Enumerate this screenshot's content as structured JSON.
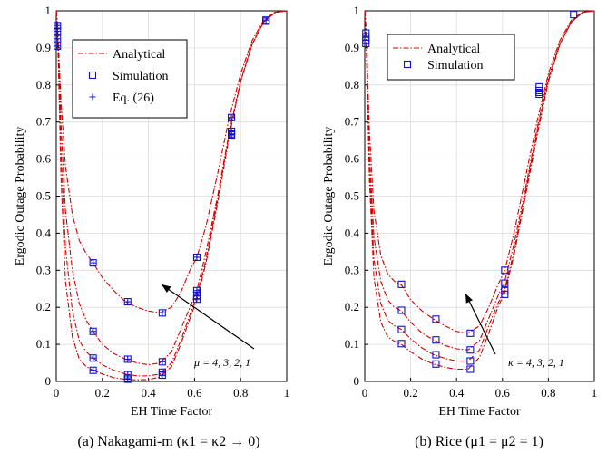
{
  "chart_data": [
    {
      "type": "line",
      "caption": "(a) Nakagami-m (κ1 = κ2 → 0)",
      "xlabel": "EH Time Factor",
      "ylabel": "Ergodic Outage Probability",
      "xlim": [
        0,
        1
      ],
      "ylim": [
        0,
        1
      ],
      "xticks": [
        "0",
        "0.2",
        "0.4",
        "0.6",
        "0.8",
        "1"
      ],
      "yticks": [
        "0",
        "0.1",
        "0.2",
        "0.3",
        "0.4",
        "0.5",
        "0.6",
        "0.7",
        "0.8",
        "0.9",
        "1"
      ],
      "grid": true,
      "legend": {
        "placement": "top-left",
        "entries": [
          {
            "label": "Analytical",
            "style": "dash-dot",
            "color": "#d00000"
          },
          {
            "label": "Simulation",
            "style": "square",
            "color": "#1010d0"
          },
          {
            "label": "Eq. (26)",
            "style": "plus",
            "color": "#1010d0"
          }
        ]
      },
      "annotation": "μ = 4, 3, 2, 1",
      "series": [
        {
          "x": [
            0,
            0.0015,
            0.005,
            0.01,
            0.02,
            0.04,
            0.07,
            0.1,
            0.13,
            0.16,
            0.2,
            0.25,
            0.3,
            0.35,
            0.4,
            0.45,
            0.5,
            0.54,
            0.58,
            0.61,
            0.65,
            0.7,
            0.75,
            0.8,
            0.85,
            0.9,
            0.95,
            1.0
          ],
          "y": [
            1.0,
            0.99,
            0.97,
            0.9,
            0.76,
            0.58,
            0.45,
            0.38,
            0.345,
            0.32,
            0.28,
            0.245,
            0.215,
            0.2,
            0.19,
            0.185,
            0.2,
            0.24,
            0.3,
            0.335,
            0.42,
            0.56,
            0.71,
            0.83,
            0.92,
            0.975,
            0.997,
            1.0
          ]
        },
        {
          "x": [
            0,
            0.0015,
            0.005,
            0.01,
            0.02,
            0.04,
            0.07,
            0.1,
            0.13,
            0.16,
            0.2,
            0.25,
            0.3,
            0.35,
            0.4,
            0.45,
            0.5,
            0.54,
            0.58,
            0.61,
            0.65,
            0.7,
            0.75,
            0.8,
            0.85,
            0.9,
            0.95,
            1.0
          ],
          "y": [
            1.0,
            0.99,
            0.96,
            0.88,
            0.7,
            0.46,
            0.3,
            0.21,
            0.165,
            0.135,
            0.1,
            0.075,
            0.06,
            0.05,
            0.045,
            0.05,
            0.08,
            0.14,
            0.2,
            0.245,
            0.35,
            0.5,
            0.67,
            0.81,
            0.91,
            0.97,
            0.996,
            1.0
          ]
        },
        {
          "x": [
            0,
            0.0015,
            0.005,
            0.01,
            0.02,
            0.04,
            0.07,
            0.1,
            0.13,
            0.16,
            0.2,
            0.25,
            0.3,
            0.35,
            0.4,
            0.45,
            0.5,
            0.54,
            0.58,
            0.61,
            0.65,
            0.7,
            0.75,
            0.8,
            0.85,
            0.9,
            0.95,
            1.0
          ],
          "y": [
            1.0,
            0.99,
            0.95,
            0.86,
            0.63,
            0.36,
            0.19,
            0.11,
            0.08,
            0.063,
            0.045,
            0.03,
            0.02,
            0.015,
            0.015,
            0.02,
            0.05,
            0.11,
            0.18,
            0.23,
            0.33,
            0.49,
            0.67,
            0.81,
            0.91,
            0.97,
            0.996,
            1.0
          ]
        },
        {
          "x": [
            0,
            0.0015,
            0.005,
            0.01,
            0.02,
            0.04,
            0.07,
            0.1,
            0.13,
            0.16,
            0.2,
            0.25,
            0.3,
            0.35,
            0.4,
            0.45,
            0.5,
            0.54,
            0.58,
            0.61,
            0.65,
            0.7,
            0.75,
            0.8,
            0.85,
            0.9,
            0.95,
            1.0
          ],
          "y": [
            1.0,
            0.99,
            0.95,
            0.84,
            0.56,
            0.27,
            0.12,
            0.06,
            0.04,
            0.03,
            0.02,
            0.01,
            0.006,
            0.004,
            0.005,
            0.012,
            0.04,
            0.1,
            0.17,
            0.22,
            0.32,
            0.48,
            0.66,
            0.81,
            0.91,
            0.97,
            0.996,
            1.0
          ]
        }
      ],
      "simulation_points": [
        {
          "x": 0.005,
          "y": 0.96
        },
        {
          "x": 0.005,
          "y": 0.945
        },
        {
          "x": 0.005,
          "y": 0.925
        },
        {
          "x": 0.005,
          "y": 0.905
        },
        {
          "x": 0.16,
          "y": 0.32
        },
        {
          "x": 0.16,
          "y": 0.135
        },
        {
          "x": 0.16,
          "y": 0.063
        },
        {
          "x": 0.16,
          "y": 0.03
        },
        {
          "x": 0.31,
          "y": 0.215
        },
        {
          "x": 0.31,
          "y": 0.06
        },
        {
          "x": 0.31,
          "y": 0.018
        },
        {
          "x": 0.31,
          "y": 0.006
        },
        {
          "x": 0.46,
          "y": 0.185
        },
        {
          "x": 0.46,
          "y": 0.053
        },
        {
          "x": 0.46,
          "y": 0.025
        },
        {
          "x": 0.46,
          "y": 0.017
        },
        {
          "x": 0.61,
          "y": 0.335
        },
        {
          "x": 0.61,
          "y": 0.245
        },
        {
          "x": 0.61,
          "y": 0.232
        },
        {
          "x": 0.61,
          "y": 0.222
        },
        {
          "x": 0.76,
          "y": 0.712
        },
        {
          "x": 0.76,
          "y": 0.675
        },
        {
          "x": 0.76,
          "y": 0.668
        },
        {
          "x": 0.76,
          "y": 0.665
        },
        {
          "x": 0.91,
          "y": 0.975
        },
        {
          "x": 0.91,
          "y": 0.972
        }
      ],
      "eq26_points": [
        {
          "x": 0.005,
          "y": 0.96
        },
        {
          "x": 0.005,
          "y": 0.945
        },
        {
          "x": 0.005,
          "y": 0.925
        },
        {
          "x": 0.005,
          "y": 0.905
        },
        {
          "x": 0.16,
          "y": 0.32
        },
        {
          "x": 0.16,
          "y": 0.135
        },
        {
          "x": 0.16,
          "y": 0.063
        },
        {
          "x": 0.16,
          "y": 0.03
        },
        {
          "x": 0.31,
          "y": 0.215
        },
        {
          "x": 0.31,
          "y": 0.06
        },
        {
          "x": 0.31,
          "y": 0.018
        },
        {
          "x": 0.31,
          "y": 0.006
        },
        {
          "x": 0.46,
          "y": 0.185
        },
        {
          "x": 0.46,
          "y": 0.053
        },
        {
          "x": 0.46,
          "y": 0.025
        },
        {
          "x": 0.46,
          "y": 0.017
        },
        {
          "x": 0.61,
          "y": 0.335
        },
        {
          "x": 0.61,
          "y": 0.245
        },
        {
          "x": 0.61,
          "y": 0.232
        },
        {
          "x": 0.61,
          "y": 0.222
        },
        {
          "x": 0.76,
          "y": 0.712
        },
        {
          "x": 0.76,
          "y": 0.675
        },
        {
          "x": 0.76,
          "y": 0.668
        },
        {
          "x": 0.76,
          "y": 0.665
        },
        {
          "x": 0.91,
          "y": 0.975
        }
      ]
    },
    {
      "type": "line",
      "caption": "(b) Rice (μ1 = μ2 = 1)",
      "xlabel": "EH Time Factor",
      "ylabel": "Ergodic Outage Probability",
      "xlim": [
        0,
        1
      ],
      "ylim": [
        0,
        1
      ],
      "xticks": [
        "0",
        "0.2",
        "0.4",
        "0.6",
        "0.8",
        "1"
      ],
      "yticks": [
        "0",
        "0.1",
        "0.2",
        "0.3",
        "0.4",
        "0.5",
        "0.6",
        "0.7",
        "0.8",
        "0.9",
        "1"
      ],
      "grid": true,
      "legend": {
        "placement": "top-left",
        "entries": [
          {
            "label": "Analytical",
            "style": "dash-dot",
            "color": "#d00000"
          },
          {
            "label": "Simulation",
            "style": "square",
            "color": "#1010d0"
          }
        ]
      },
      "annotation": "κ = 4, 3, 2, 1",
      "series": [
        {
          "x": [
            0,
            0.0015,
            0.005,
            0.01,
            0.02,
            0.04,
            0.07,
            0.1,
            0.13,
            0.16,
            0.2,
            0.25,
            0.3,
            0.35,
            0.4,
            0.45,
            0.5,
            0.54,
            0.58,
            0.61,
            0.65,
            0.7,
            0.75,
            0.8,
            0.85,
            0.9,
            0.95,
            1.0
          ],
          "y": [
            1.0,
            0.99,
            0.96,
            0.87,
            0.68,
            0.46,
            0.34,
            0.29,
            0.27,
            0.26,
            0.22,
            0.19,
            0.168,
            0.15,
            0.135,
            0.13,
            0.15,
            0.2,
            0.26,
            0.3,
            0.4,
            0.55,
            0.7,
            0.83,
            0.92,
            0.975,
            0.997,
            1.0
          ]
        },
        {
          "x": [
            0,
            0.0015,
            0.005,
            0.01,
            0.02,
            0.04,
            0.07,
            0.1,
            0.13,
            0.16,
            0.2,
            0.25,
            0.3,
            0.35,
            0.4,
            0.45,
            0.5,
            0.54,
            0.58,
            0.61,
            0.65,
            0.7,
            0.75,
            0.8,
            0.85,
            0.9,
            0.95,
            1.0
          ],
          "y": [
            1.0,
            0.99,
            0.95,
            0.85,
            0.62,
            0.39,
            0.27,
            0.22,
            0.2,
            0.19,
            0.16,
            0.13,
            0.112,
            0.097,
            0.088,
            0.085,
            0.11,
            0.17,
            0.23,
            0.27,
            0.37,
            0.52,
            0.68,
            0.82,
            0.91,
            0.97,
            0.996,
            1.0
          ]
        },
        {
          "x": [
            0,
            0.0015,
            0.005,
            0.01,
            0.02,
            0.04,
            0.07,
            0.1,
            0.13,
            0.16,
            0.2,
            0.25,
            0.3,
            0.35,
            0.4,
            0.45,
            0.5,
            0.54,
            0.58,
            0.61,
            0.65,
            0.7,
            0.75,
            0.8,
            0.85,
            0.9,
            0.95,
            1.0
          ],
          "y": [
            1.0,
            0.99,
            0.95,
            0.84,
            0.58,
            0.33,
            0.21,
            0.165,
            0.15,
            0.14,
            0.115,
            0.09,
            0.072,
            0.062,
            0.055,
            0.055,
            0.085,
            0.15,
            0.21,
            0.25,
            0.35,
            0.51,
            0.67,
            0.81,
            0.91,
            0.97,
            0.996,
            1.0
          ]
        },
        {
          "x": [
            0,
            0.0015,
            0.005,
            0.01,
            0.02,
            0.04,
            0.07,
            0.1,
            0.13,
            0.16,
            0.2,
            0.25,
            0.3,
            0.35,
            0.4,
            0.45,
            0.5,
            0.54,
            0.58,
            0.61,
            0.65,
            0.7,
            0.75,
            0.8,
            0.85,
            0.9,
            0.95,
            1.0
          ],
          "y": [
            1.0,
            0.99,
            0.94,
            0.83,
            0.55,
            0.28,
            0.16,
            0.12,
            0.108,
            0.1,
            0.08,
            0.06,
            0.047,
            0.038,
            0.033,
            0.033,
            0.065,
            0.13,
            0.2,
            0.24,
            0.34,
            0.5,
            0.66,
            0.81,
            0.91,
            0.97,
            0.996,
            1.0
          ]
        }
      ],
      "simulation_points": [
        {
          "x": 0.005,
          "y": 0.94
        },
        {
          "x": 0.005,
          "y": 0.93
        },
        {
          "x": 0.005,
          "y": 0.92
        },
        {
          "x": 0.005,
          "y": 0.912
        },
        {
          "x": 0.16,
          "y": 0.262
        },
        {
          "x": 0.16,
          "y": 0.192
        },
        {
          "x": 0.16,
          "y": 0.14
        },
        {
          "x": 0.16,
          "y": 0.102
        },
        {
          "x": 0.31,
          "y": 0.168
        },
        {
          "x": 0.31,
          "y": 0.112
        },
        {
          "x": 0.31,
          "y": 0.072
        },
        {
          "x": 0.31,
          "y": 0.047
        },
        {
          "x": 0.46,
          "y": 0.13
        },
        {
          "x": 0.46,
          "y": 0.085
        },
        {
          "x": 0.46,
          "y": 0.055
        },
        {
          "x": 0.46,
          "y": 0.033
        },
        {
          "x": 0.61,
          "y": 0.3
        },
        {
          "x": 0.61,
          "y": 0.265
        },
        {
          "x": 0.61,
          "y": 0.245
        },
        {
          "x": 0.61,
          "y": 0.235
        },
        {
          "x": 0.76,
          "y": 0.795
        },
        {
          "x": 0.76,
          "y": 0.785
        },
        {
          "x": 0.76,
          "y": 0.78
        },
        {
          "x": 0.76,
          "y": 0.775
        },
        {
          "x": 0.91,
          "y": 0.99
        }
      ]
    }
  ],
  "colors": {
    "analytical": "#d00000",
    "markers": "#1010d0",
    "grid": "#dcdcdc",
    "axis": "#000000"
  }
}
